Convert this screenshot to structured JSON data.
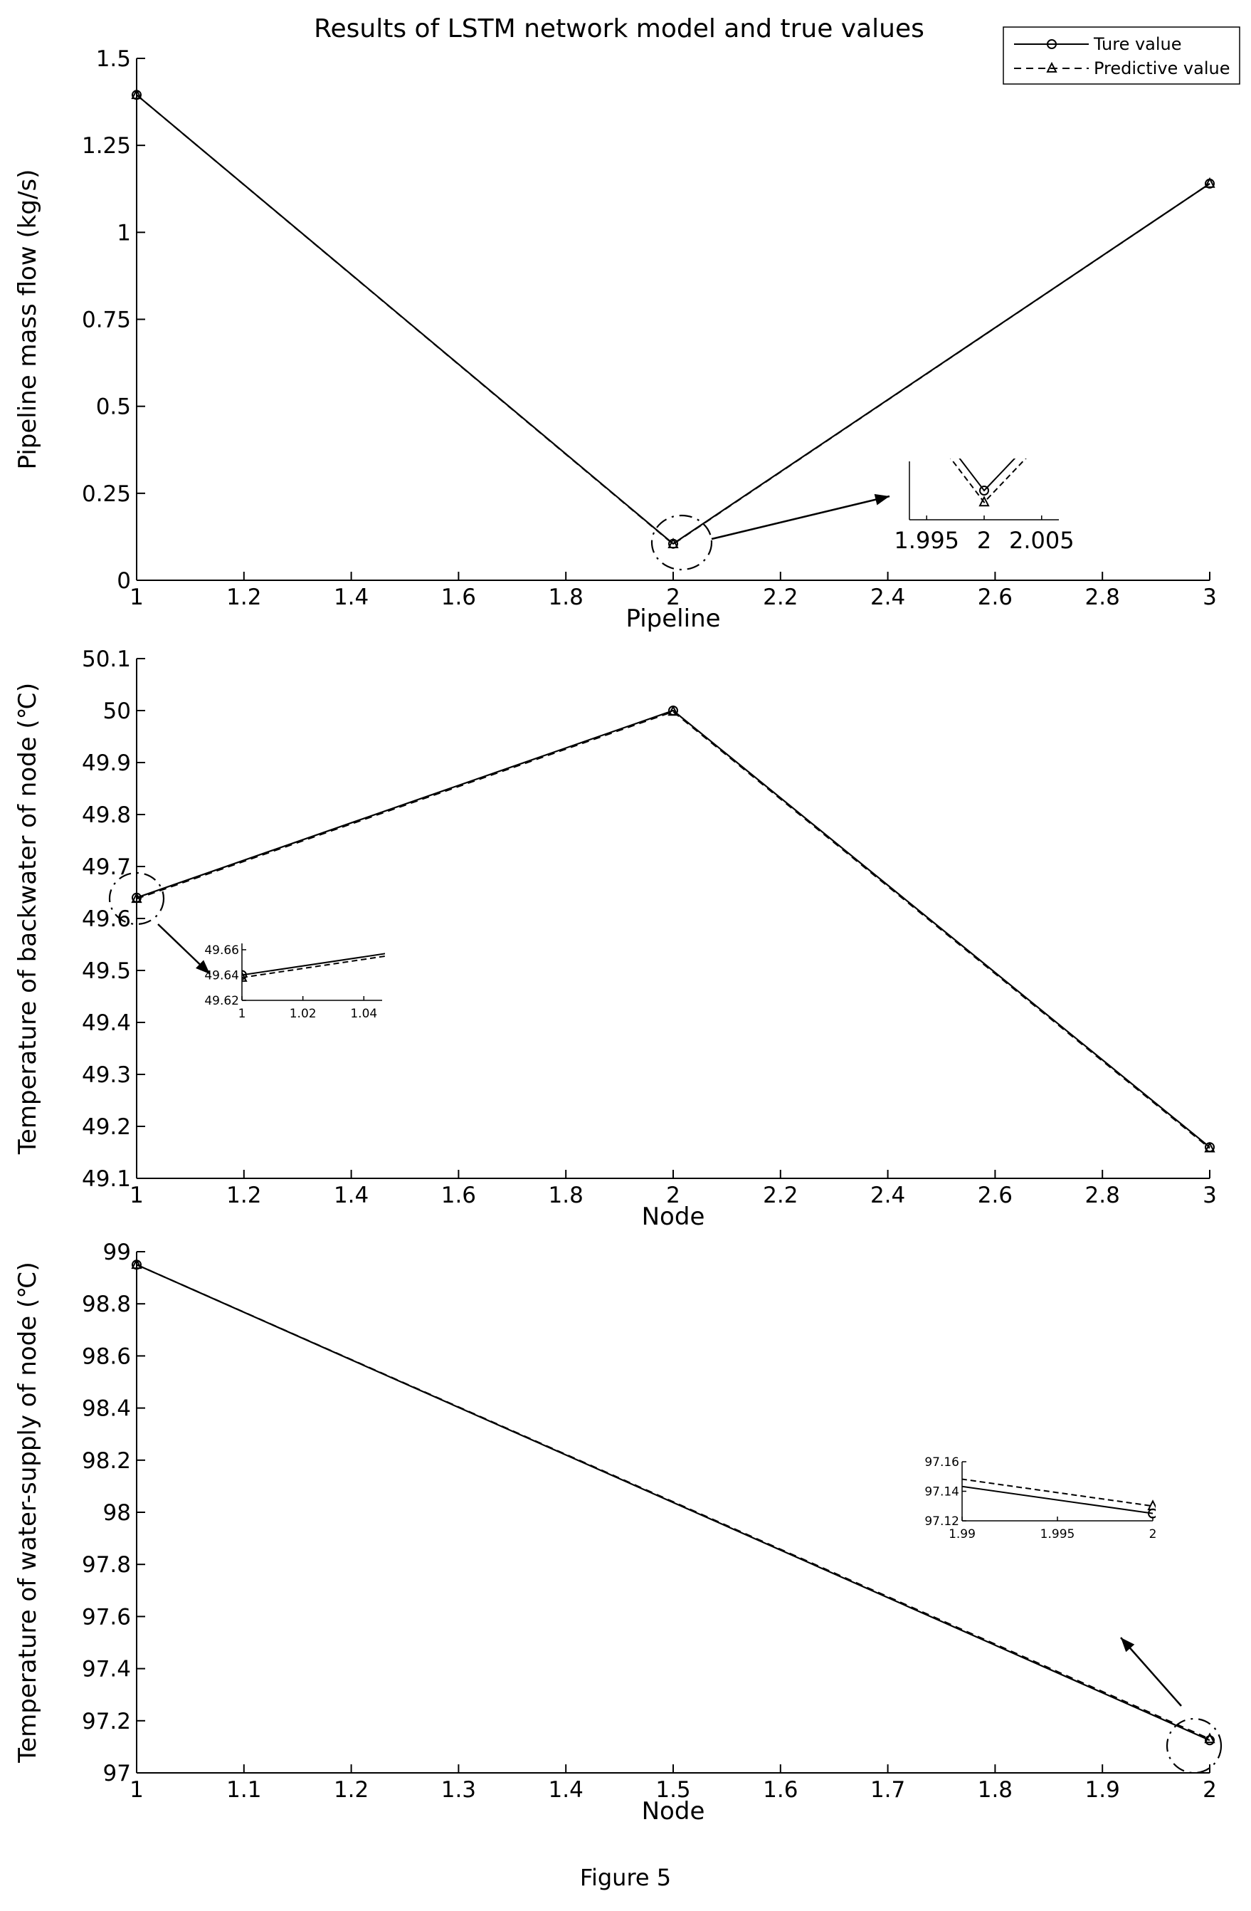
{
  "title": "Results of LSTM network model and true values",
  "caption": "Figure 5",
  "legend": {
    "placement": "top-right",
    "entries": [
      {
        "label": "Ture value",
        "line": "solid",
        "marker": "circle"
      },
      {
        "label": "Predictive value",
        "line": "dashed",
        "marker": "triangle"
      }
    ]
  },
  "chart_data": [
    {
      "type": "line",
      "xlabel": "Pipeline",
      "ylabel": "Pipeline mass flow (kg/s)",
      "xlim": [
        1,
        3
      ],
      "ylim": [
        0,
        1.5
      ],
      "x_ticks": [
        "1",
        "1.2",
        "1.4",
        "1.6",
        "1.8",
        "2",
        "2.2",
        "2.4",
        "2.6",
        "2.8",
        "3"
      ],
      "y_ticks": [
        "0",
        "0.25",
        "0.5",
        "0.75",
        "1",
        "1.25",
        "1.5"
      ],
      "grid": false,
      "series": [
        {
          "name": "Ture value",
          "x": [
            1,
            2,
            3
          ],
          "values": [
            1.395,
            0.105,
            1.14
          ]
        },
        {
          "name": "Predictive value",
          "x": [
            1,
            2,
            3
          ],
          "values": [
            1.395,
            0.104,
            1.14
          ]
        }
      ],
      "inset": {
        "x_ticks": [
          "1.995",
          "2",
          "2.005"
        ]
      }
    },
    {
      "type": "line",
      "xlabel": "Node",
      "ylabel": "Temperature of backwater of node (℃)",
      "xlim": [
        1,
        3
      ],
      "ylim": [
        49.1,
        50.1
      ],
      "x_ticks": [
        "1",
        "1.2",
        "1.4",
        "1.6",
        "1.8",
        "2",
        "2.2",
        "2.4",
        "2.6",
        "2.8",
        "3"
      ],
      "y_ticks": [
        "49.1",
        "49.2",
        "49.3",
        "49.4",
        "49.5",
        "49.6",
        "49.7",
        "49.8",
        "49.9",
        "50",
        "50.1"
      ],
      "grid": false,
      "series": [
        {
          "name": "Ture value",
          "x": [
            1,
            2,
            3
          ],
          "values": [
            49.64,
            50.0,
            49.16
          ]
        },
        {
          "name": "Predictive value",
          "x": [
            1,
            2,
            3
          ],
          "values": [
            49.638,
            49.998,
            49.158
          ]
        }
      ],
      "inset": {
        "x_ticks": [
          "1",
          "1.02",
          "1.04"
        ],
        "y_ticks": [
          "49.62",
          "49.64",
          "49.66"
        ]
      }
    },
    {
      "type": "line",
      "xlabel": "Node",
      "ylabel": "Temperature of water-supply of node (℃)",
      "xlim": [
        1,
        2
      ],
      "ylim": [
        97,
        99
      ],
      "x_ticks": [
        "1",
        "1.1",
        "1.2",
        "1.3",
        "1.4",
        "1.5",
        "1.6",
        "1.7",
        "1.8",
        "1.9",
        "2"
      ],
      "y_ticks": [
        "97",
        "97.2",
        "97.4",
        "97.6",
        "97.8",
        "98",
        "98.2",
        "98.4",
        "98.6",
        "98.8",
        "99"
      ],
      "grid": false,
      "series": [
        {
          "name": "Ture value",
          "x": [
            1,
            2
          ],
          "values": [
            98.95,
            97.125
          ]
        },
        {
          "name": "Predictive value",
          "x": [
            1,
            2
          ],
          "values": [
            98.95,
            97.13
          ]
        }
      ],
      "inset": {
        "x_ticks": [
          "1.99",
          "1.995",
          "2"
        ],
        "y_ticks": [
          "97.12",
          "97.14",
          "97.16"
        ]
      }
    }
  ]
}
